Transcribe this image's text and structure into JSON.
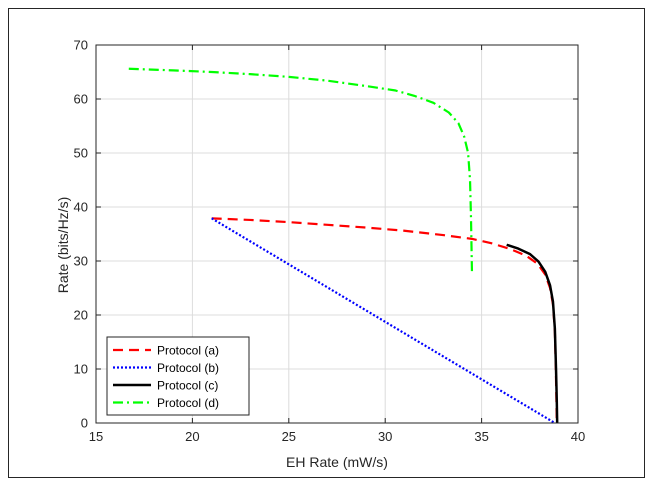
{
  "chart_data": {
    "type": "line",
    "title": "",
    "xlabel": "EH Rate (mW/s)",
    "ylabel": "Rate (bits/Hz/s)",
    "xlim": [
      15,
      40
    ],
    "ylim": [
      0,
      70
    ],
    "xticks": [
      15,
      20,
      25,
      30,
      35,
      40
    ],
    "yticks": [
      0,
      10,
      20,
      30,
      40,
      50,
      60,
      70
    ],
    "grid": true,
    "legend_position": "bottom-left",
    "series": [
      {
        "name": "Protocol (a)",
        "color": "#ff0000",
        "dash": "dashed",
        "x": [
          21.0,
          23.0,
          25.0,
          27.0,
          29.0,
          31.0,
          33.0,
          34.5,
          35.5,
          36.5,
          37.3,
          37.9,
          38.3,
          38.55,
          38.7,
          38.8,
          38.85,
          38.88,
          38.9
        ],
        "y": [
          37.9,
          37.6,
          37.2,
          36.7,
          36.2,
          35.6,
          34.8,
          34.1,
          33.3,
          32.2,
          31.0,
          29.5,
          27.5,
          25.0,
          22.0,
          17.0,
          10.0,
          4.0,
          0.0
        ]
      },
      {
        "name": "Protocol (b)",
        "color": "#0000ff",
        "dash": "dotted",
        "x": [
          21.0,
          38.8
        ],
        "y": [
          37.9,
          0.0
        ]
      },
      {
        "name": "Protocol (c)",
        "color": "#000000",
        "dash": "solid",
        "x": [
          36.3,
          36.9,
          37.5,
          37.95,
          38.3,
          38.55,
          38.7,
          38.8,
          38.86,
          38.9,
          38.92
        ],
        "y": [
          33.0,
          32.3,
          31.3,
          29.9,
          28.0,
          25.5,
          22.5,
          17.5,
          10.0,
          4.0,
          0.0
        ]
      },
      {
        "name": "Protocol (d)",
        "color": "#00ff00",
        "dash": "dashdot",
        "x": [
          16.7,
          19.0,
          21.0,
          23.0,
          25.0,
          27.0,
          29.0,
          30.5,
          31.5,
          32.5,
          33.3,
          33.8,
          34.1,
          34.3,
          34.4,
          34.45,
          34.5
        ],
        "y": [
          65.6,
          65.3,
          65.0,
          64.6,
          64.1,
          63.4,
          62.4,
          61.6,
          60.6,
          59.3,
          57.5,
          55.5,
          53.0,
          50.0,
          45.0,
          38.0,
          28.0
        ]
      }
    ]
  }
}
